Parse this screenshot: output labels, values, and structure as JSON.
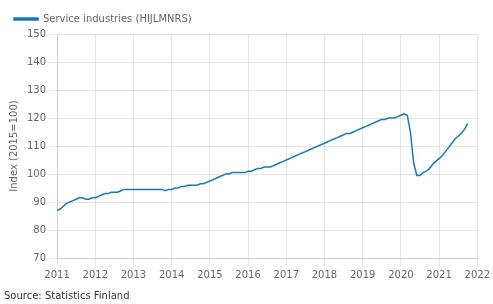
{
  "chart_data": {
    "type": "line",
    "ylabel": "Index (2015=100)",
    "source": "Source: Statistics Finland",
    "x": [
      2011.0,
      2011.083,
      2011.167,
      2011.25,
      2011.333,
      2011.417,
      2011.5,
      2011.583,
      2011.667,
      2011.75,
      2011.833,
      2011.917,
      2012.0,
      2012.083,
      2012.167,
      2012.25,
      2012.333,
      2012.417,
      2012.5,
      2012.583,
      2012.667,
      2012.75,
      2012.833,
      2012.917,
      2013.0,
      2013.083,
      2013.167,
      2013.25,
      2013.333,
      2013.417,
      2013.5,
      2013.583,
      2013.667,
      2013.75,
      2013.833,
      2013.917,
      2014.0,
      2014.083,
      2014.167,
      2014.25,
      2014.333,
      2014.417,
      2014.5,
      2014.583,
      2014.667,
      2014.75,
      2014.833,
      2014.917,
      2015.0,
      2015.083,
      2015.167,
      2015.25,
      2015.333,
      2015.417,
      2015.5,
      2015.583,
      2015.667,
      2015.75,
      2015.833,
      2015.917,
      2016.0,
      2016.083,
      2016.167,
      2016.25,
      2016.333,
      2016.417,
      2016.5,
      2016.583,
      2016.667,
      2016.75,
      2016.833,
      2016.917,
      2017.0,
      2017.083,
      2017.167,
      2017.25,
      2017.333,
      2017.417,
      2017.5,
      2017.583,
      2017.667,
      2017.75,
      2017.833,
      2017.917,
      2018.0,
      2018.083,
      2018.167,
      2018.25,
      2018.333,
      2018.417,
      2018.5,
      2018.583,
      2018.667,
      2018.75,
      2018.833,
      2018.917,
      2019.0,
      2019.083,
      2019.167,
      2019.25,
      2019.333,
      2019.417,
      2019.5,
      2019.583,
      2019.667,
      2019.75,
      2019.833,
      2019.917,
      2020.0,
      2020.083,
      2020.167,
      2020.25,
      2020.333,
      2020.417,
      2020.5,
      2020.583,
      2020.667,
      2020.75,
      2020.833,
      2020.917,
      2021.0,
      2021.083,
      2021.167,
      2021.25,
      2021.333,
      2021.417,
      2021.5,
      2021.583,
      2021.667,
      2021.75
    ],
    "series": [
      {
        "name": "Service industries (HIJLMNRS)",
        "color": "#1a7ab5",
        "values": [
          87.0,
          87.5,
          88.5,
          89.5,
          90.0,
          90.5,
          91.0,
          91.5,
          91.5,
          91.0,
          91.0,
          91.5,
          91.5,
          92.0,
          92.5,
          93.0,
          93.0,
          93.5,
          93.5,
          93.5,
          94.0,
          94.5,
          94.5,
          94.5,
          94.5,
          94.5,
          94.5,
          94.5,
          94.5,
          94.5,
          94.5,
          94.5,
          94.5,
          94.5,
          94.0,
          94.5,
          94.5,
          95.0,
          95.0,
          95.5,
          95.5,
          96.0,
          96.0,
          96.0,
          96.0,
          96.5,
          96.5,
          97.0,
          97.5,
          98.0,
          98.5,
          99.0,
          99.5,
          100.0,
          100.0,
          100.5,
          100.5,
          100.5,
          100.5,
          100.5,
          101.0,
          101.0,
          101.5,
          102.0,
          102.0,
          102.5,
          102.5,
          102.5,
          103.0,
          103.5,
          104.0,
          104.5,
          105.0,
          105.5,
          106.0,
          106.5,
          107.0,
          107.5,
          108.0,
          108.5,
          109.0,
          109.5,
          110.0,
          110.5,
          111.0,
          111.5,
          112.0,
          112.5,
          113.0,
          113.5,
          114.0,
          114.5,
          114.5,
          115.0,
          115.5,
          116.0,
          116.5,
          117.0,
          117.5,
          118.0,
          118.5,
          119.0,
          119.5,
          119.5,
          120.0,
          120.0,
          120.0,
          120.5,
          121.0,
          121.5,
          121.0,
          115.0,
          104.0,
          99.5,
          99.5,
          100.5,
          101.0,
          102.0,
          103.5,
          104.5,
          105.5,
          106.5,
          108.0,
          109.5,
          111.0,
          112.5,
          113.5,
          114.5,
          116.0,
          118.0
        ]
      }
    ],
    "xlim": [
      2011,
      2022
    ],
    "xticks": [
      2011,
      2012,
      2013,
      2014,
      2015,
      2016,
      2017,
      2018,
      2019,
      2020,
      2021,
      2022
    ],
    "ylim": [
      70,
      150
    ],
    "yticks": [
      70,
      80,
      90,
      100,
      110,
      120,
      130,
      140,
      150
    ],
    "grid": true,
    "legend": "upper left"
  }
}
